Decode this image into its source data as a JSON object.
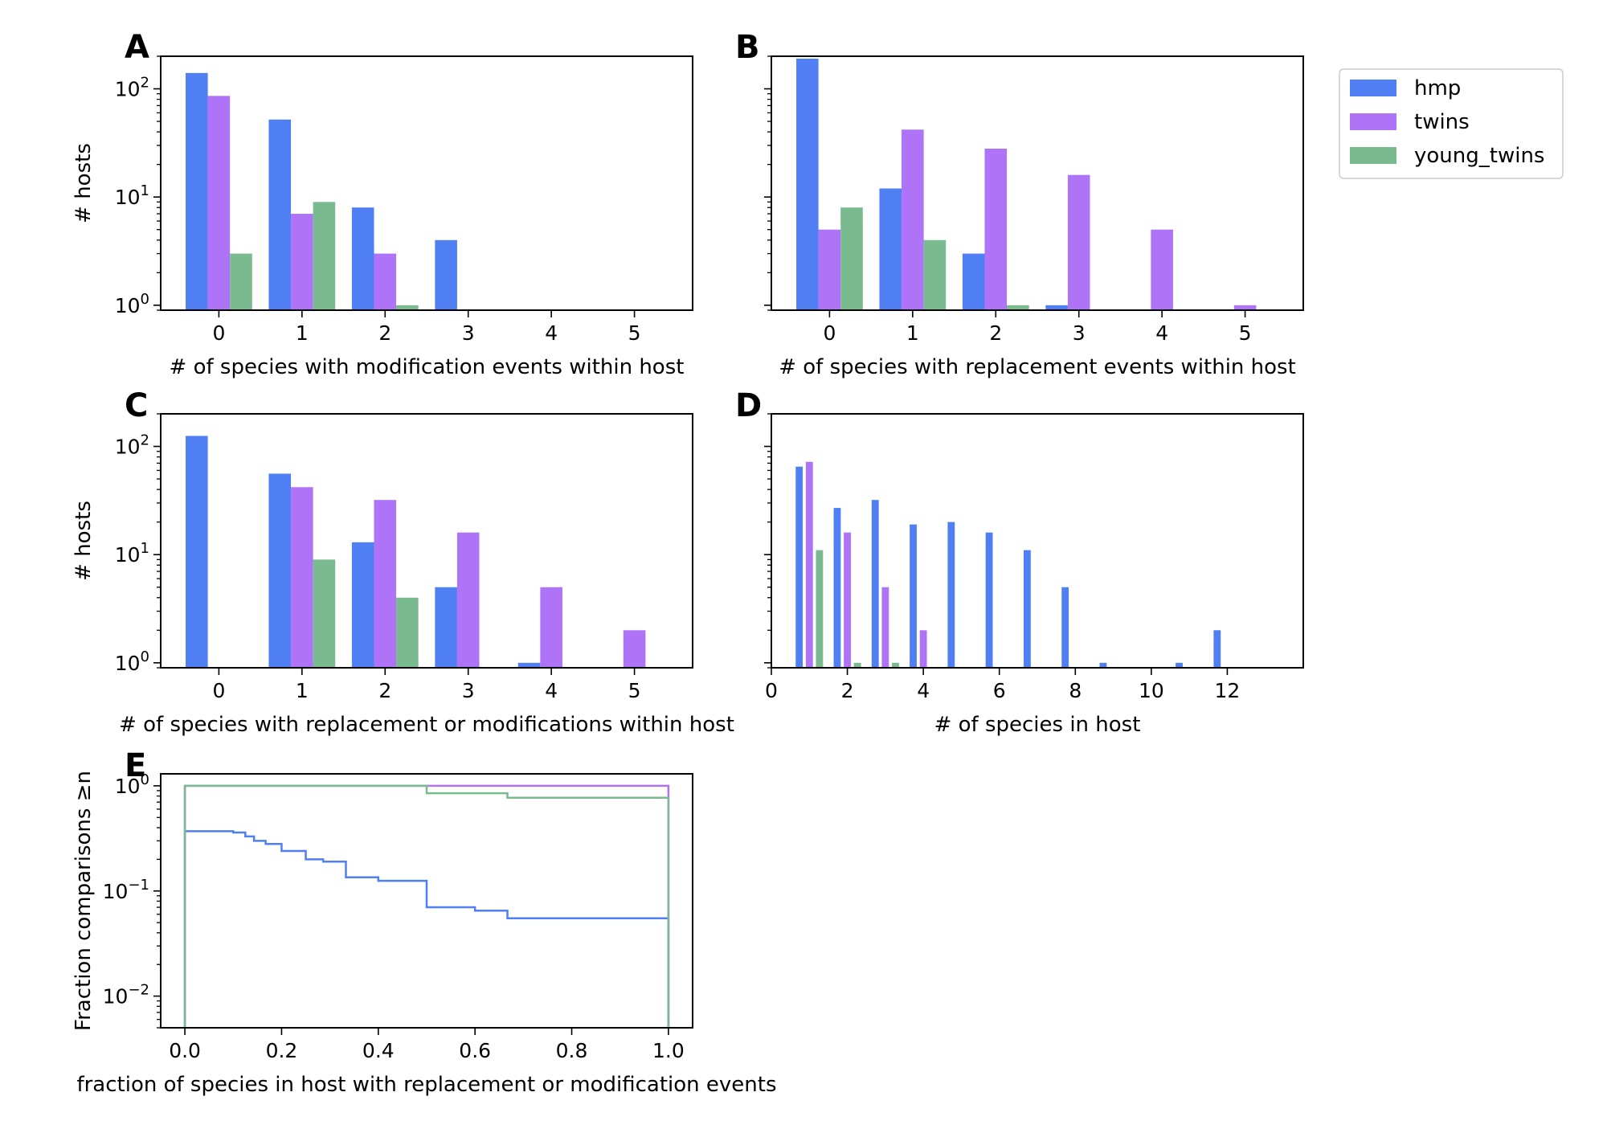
{
  "colors": {
    "hmp": "#4f7ff2",
    "twins": "#ae73f7",
    "young_twins": "#79ba8f"
  },
  "legend": {
    "placement": "upper-right-outside",
    "entries": [
      {
        "key": "hmp",
        "label": "hmp"
      },
      {
        "key": "twins",
        "label": "twins"
      },
      {
        "key": "young_twins",
        "label": "young_twins"
      }
    ]
  },
  "chart_data": [
    {
      "panel": "A",
      "type": "bar",
      "xlabel": "# of species with modification events within host",
      "ylabel": "# hosts",
      "yscale": "log",
      "ylim": [
        0.9,
        200
      ],
      "xlim": [
        -0.7,
        5.7
      ],
      "categories": [
        0,
        1,
        2,
        3,
        4,
        5
      ],
      "xticks": [
        0,
        1,
        2,
        3,
        4,
        5
      ],
      "yticks": [
        {
          "v": 1,
          "label": "10^0"
        },
        {
          "v": 10,
          "label": "10^1"
        },
        {
          "v": 100,
          "label": "10^2"
        }
      ],
      "series": [
        {
          "name": "hmp",
          "values": [
            140,
            52,
            8,
            4,
            0,
            0
          ]
        },
        {
          "name": "twins",
          "values": [
            86,
            7,
            3,
            0,
            0,
            0
          ]
        },
        {
          "name": "young_twins",
          "values": [
            3,
            9,
            1,
            0,
            0,
            0
          ]
        }
      ]
    },
    {
      "panel": "B",
      "type": "bar",
      "xlabel": "# of species with replacement events within host",
      "ylabel": "",
      "yscale": "log",
      "ylim": [
        0.9,
        200
      ],
      "xlim": [
        -0.7,
        5.7
      ],
      "categories": [
        0,
        1,
        2,
        3,
        4,
        5
      ],
      "xticks": [
        0,
        1,
        2,
        3,
        4,
        5
      ],
      "yticks": [],
      "series": [
        {
          "name": "hmp",
          "values": [
            190,
            12,
            3,
            1,
            0,
            0
          ]
        },
        {
          "name": "twins",
          "values": [
            5,
            42,
            28,
            16,
            5,
            1
          ]
        },
        {
          "name": "young_twins",
          "values": [
            8,
            4,
            1,
            0,
            0,
            0
          ]
        }
      ]
    },
    {
      "panel": "C",
      "type": "bar",
      "xlabel": "# of species with replacement or modifications within host",
      "ylabel": "# hosts",
      "yscale": "log",
      "ylim": [
        0.9,
        200
      ],
      "xlim": [
        -0.7,
        5.7
      ],
      "categories": [
        0,
        1,
        2,
        3,
        4,
        5
      ],
      "xticks": [
        0,
        1,
        2,
        3,
        4,
        5
      ],
      "yticks": [
        {
          "v": 1,
          "label": "10^0"
        },
        {
          "v": 10,
          "label": "10^1"
        },
        {
          "v": 100,
          "label": "10^2"
        }
      ],
      "series": [
        {
          "name": "hmp",
          "values": [
            125,
            56,
            13,
            5,
            1,
            0
          ]
        },
        {
          "name": "twins",
          "values": [
            0,
            42,
            32,
            16,
            5,
            2
          ]
        },
        {
          "name": "young_twins",
          "values": [
            0,
            9,
            4,
            0,
            0,
            0
          ]
        }
      ]
    },
    {
      "panel": "D",
      "type": "bar",
      "xlabel": "# of species in host",
      "ylabel": "",
      "yscale": "log",
      "ylim": [
        0.9,
        200
      ],
      "xlim": [
        0,
        14
      ],
      "categories": [
        1,
        2,
        3,
        4,
        5,
        6,
        7,
        8,
        9,
        10,
        11,
        12
      ],
      "xticks": [
        0,
        2,
        4,
        6,
        8,
        10,
        12
      ],
      "yticks": [],
      "series": [
        {
          "name": "hmp",
          "values": [
            65,
            27,
            32,
            19,
            20,
            16,
            11,
            5,
            1,
            0,
            1,
            2
          ]
        },
        {
          "name": "twins",
          "values": [
            72,
            16,
            5,
            2,
            0,
            0,
            0,
            0,
            0,
            0,
            0,
            0
          ]
        },
        {
          "name": "young_twins",
          "values": [
            11,
            1,
            1,
            0,
            0,
            0,
            0,
            0,
            0,
            0,
            0,
            0
          ]
        }
      ]
    },
    {
      "panel": "E",
      "type": "line",
      "xlabel": "fraction of species in host with replacement or modification events",
      "ylabel": "Fraction comparisons ≥n",
      "yscale": "log",
      "ylim": [
        0.005,
        1.3
      ],
      "xlim": [
        -0.05,
        1.05
      ],
      "xticks": [
        0.0,
        0.2,
        0.4,
        0.6,
        0.8,
        1.0
      ],
      "xticklabels": [
        "0.0",
        "0.2",
        "0.4",
        "0.6",
        "0.8",
        "1.0"
      ],
      "yticks": [
        {
          "v": 0.01,
          "label": "10^−2"
        },
        {
          "v": 0.1,
          "label": "10^−1"
        },
        {
          "v": 1,
          "label": "10^0"
        }
      ],
      "series": [
        {
          "name": "hmp",
          "x": [
            0,
            0.1,
            0.125,
            0.143,
            0.167,
            0.2,
            0.25,
            0.286,
            0.333,
            0.4,
            0.5,
            0.6,
            0.667,
            1.0
          ],
          "values": [
            0.37,
            0.36,
            0.33,
            0.3,
            0.28,
            0.24,
            0.2,
            0.19,
            0.135,
            0.125,
            0.07,
            0.065,
            0.055,
            0.055
          ]
        },
        {
          "name": "twins",
          "x": [
            0,
            1.0
          ],
          "values": [
            1.0,
            1.0
          ]
        },
        {
          "name": "young_twins",
          "x": [
            0,
            0.5,
            0.667,
            1.0
          ],
          "values": [
            1.0,
            0.85,
            0.77,
            0.77
          ]
        }
      ]
    }
  ]
}
